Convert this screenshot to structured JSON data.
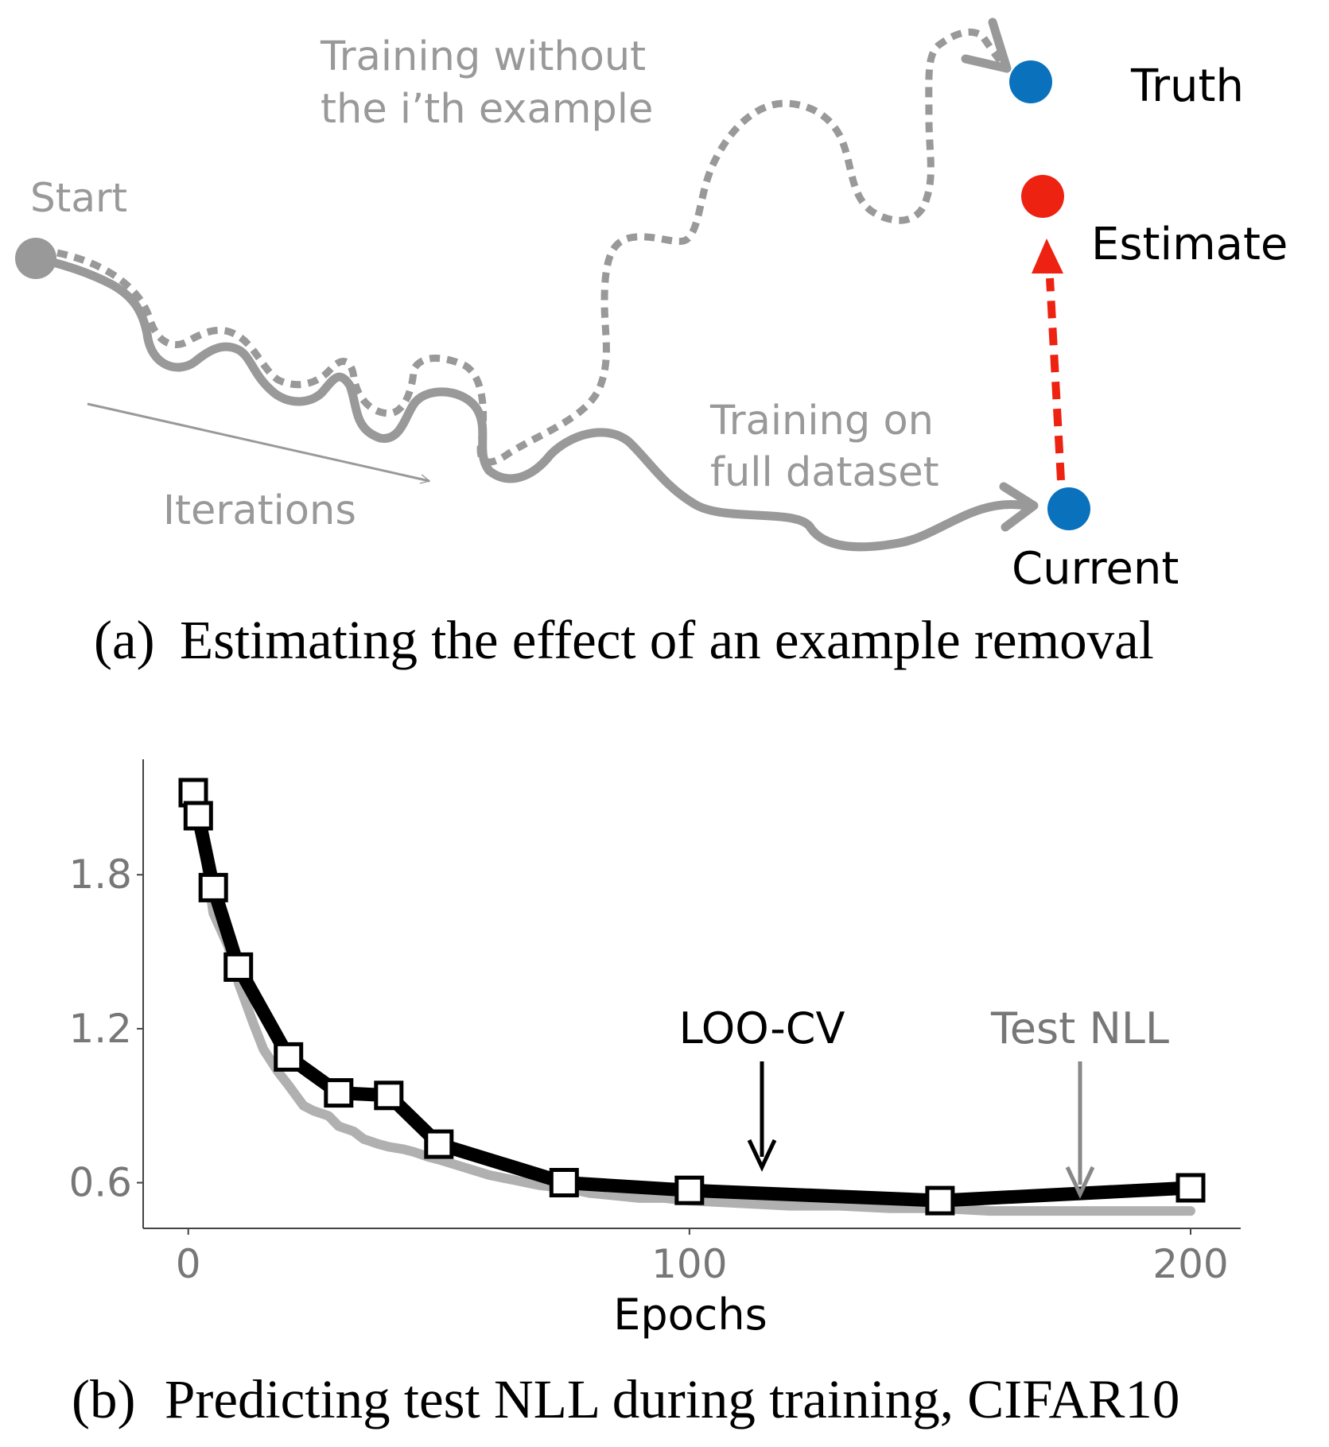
{
  "diagram": {
    "labels": {
      "start": "Start",
      "without_line1": "Training without",
      "without_line2": "the i’th example",
      "iterations": "Iterations",
      "full_line1": "Training on",
      "full_line2": "full dataset",
      "truth": "Truth",
      "estimate": "Estimate",
      "current": "Current"
    },
    "caption_tag": "(a)",
    "caption_text": "Estimating the effect of an example removal",
    "colors": {
      "path": "#999999",
      "truth": "#0a72bd",
      "current": "#0a72bd",
      "estimate": "#ee2211",
      "estimate_arrow": "#ee2211"
    }
  },
  "chart": {
    "caption_tag": "(b)",
    "caption_text": "Predicting test NLL during training, CIFAR10",
    "annotations": {
      "loo": "LOO-CV",
      "test": "Test NLL"
    },
    "ytick_labels": [
      "1.8",
      "1.2",
      "0.6"
    ],
    "xtick_labels": [
      "0",
      "100",
      "200"
    ],
    "xlabel": "Epochs",
    "colors": {
      "loo_line": "#000000",
      "test_line": "#b0b0b0",
      "test_arrow": "#888888",
      "axis_text": "#777777"
    }
  },
  "chart_data": {
    "type": "line",
    "xlabel": "Epochs",
    "ylabel": "",
    "xlim": [
      -9,
      210
    ],
    "ylim": [
      0.422,
      2.25
    ],
    "xticks": [
      0,
      100,
      200
    ],
    "yticks": [
      0.6,
      1.2,
      1.8
    ],
    "grid": false,
    "series": [
      {
        "name": "LOO-CV",
        "marker": "square",
        "x": [
          1,
          2,
          5,
          10,
          20,
          30,
          40,
          50,
          75,
          100,
          150,
          200
        ],
        "y": [
          2.12,
          2.03,
          1.75,
          1.44,
          1.09,
          0.95,
          0.94,
          0.75,
          0.6,
          0.57,
          0.53,
          0.58
        ]
      },
      {
        "name": "Test NLL",
        "marker": "none",
        "x": [
          1,
          3,
          5,
          8,
          10,
          13,
          15,
          18,
          20,
          23,
          25,
          28,
          30,
          33,
          35,
          38,
          40,
          43,
          45,
          48,
          50,
          55,
          60,
          65,
          70,
          75,
          80,
          85,
          90,
          95,
          100,
          110,
          120,
          130,
          140,
          150,
          160,
          170,
          180,
          190,
          200
        ],
        "y": [
          2.05,
          1.92,
          1.65,
          1.52,
          1.38,
          1.22,
          1.12,
          1.03,
          0.98,
          0.9,
          0.88,
          0.86,
          0.82,
          0.8,
          0.77,
          0.75,
          0.74,
          0.73,
          0.72,
          0.7,
          0.69,
          0.66,
          0.63,
          0.61,
          0.59,
          0.58,
          0.56,
          0.55,
          0.54,
          0.54,
          0.53,
          0.52,
          0.51,
          0.51,
          0.5,
          0.5,
          0.49,
          0.49,
          0.49,
          0.49,
          0.49
        ]
      }
    ],
    "annotations": [
      {
        "text": "LOO-CV",
        "x": 114,
        "y": 0.64
      },
      {
        "text": "Test NLL",
        "x": 178,
        "y": 0.53
      }
    ]
  }
}
